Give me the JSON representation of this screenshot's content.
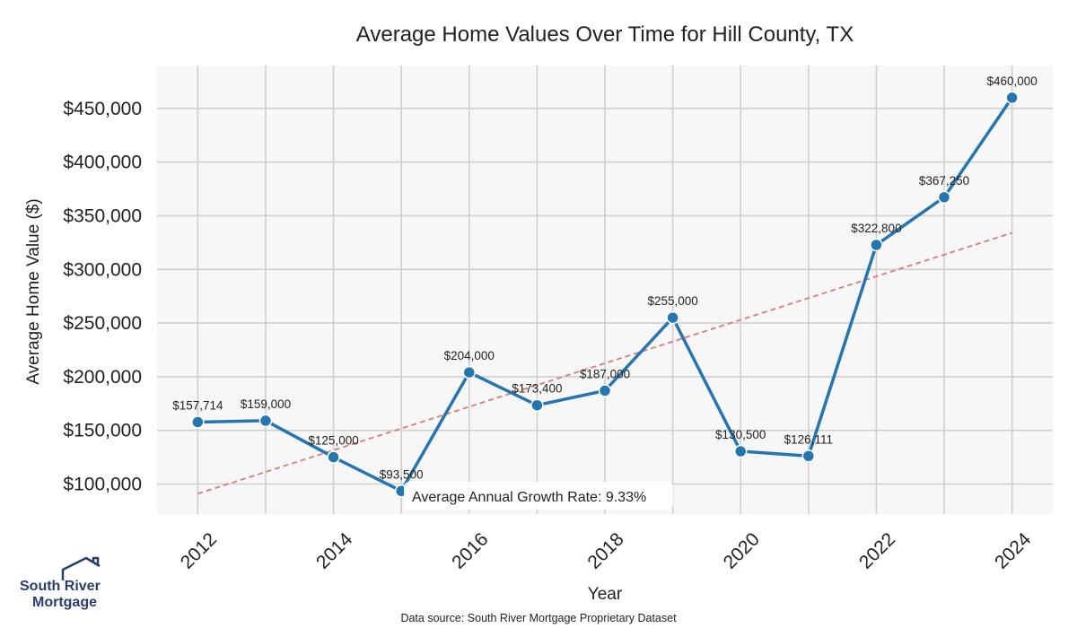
{
  "chart_data": {
    "type": "line",
    "title": "Average Home Values Over Time for Hill County, TX",
    "xlabel": "Year",
    "ylabel": "Average Home Value ($)",
    "x": [
      2012,
      2013,
      2014,
      2015,
      2016,
      2017,
      2018,
      2019,
      2020,
      2021,
      2022,
      2023,
      2024
    ],
    "values": [
      157714,
      159000,
      125000,
      93500,
      204000,
      173400,
      187000,
      255000,
      130500,
      126111,
      322800,
      367250,
      460000
    ],
    "data_labels": [
      "$157,714",
      "$159,000",
      "$125,000",
      "$93,500",
      "$204,000",
      "$173,400",
      "$187,000",
      "$255,000",
      "$130,500",
      "$126,111",
      "$322,800",
      "$367,250",
      "$460,000"
    ],
    "xticks": [
      2012,
      2014,
      2016,
      2018,
      2020,
      2022,
      2024
    ],
    "xtick_labels": [
      "2012",
      "2014",
      "2016",
      "2018",
      "2020",
      "2022",
      "2024"
    ],
    "yticks": [
      100000,
      150000,
      200000,
      250000,
      300000,
      350000,
      400000,
      450000
    ],
    "ytick_labels": [
      "$100,000",
      "$150,000",
      "$200,000",
      "$250,000",
      "$300,000",
      "$350,000",
      "$400,000",
      "$450,000"
    ],
    "xlim": [
      2011.4,
      2024.6
    ],
    "ylim": [
      72000,
      490000
    ],
    "grid": true,
    "trendline": {
      "x": [
        2012,
        2024
      ],
      "y": [
        91000,
        334000
      ],
      "style": "dashed"
    },
    "annotation": "Average Annual Growth Rate: 9.33%",
    "source_note": "Data source: South River Mortgage Proprietary Dataset",
    "colors": {
      "line": "#2576b0",
      "trend": "#d97b7b",
      "plot_bg": "#f7f7f7",
      "grid": "#cfcfcf"
    }
  },
  "logo": {
    "line1": "South River",
    "line2": "Mortgage",
    "color": "#2a3d6e"
  }
}
